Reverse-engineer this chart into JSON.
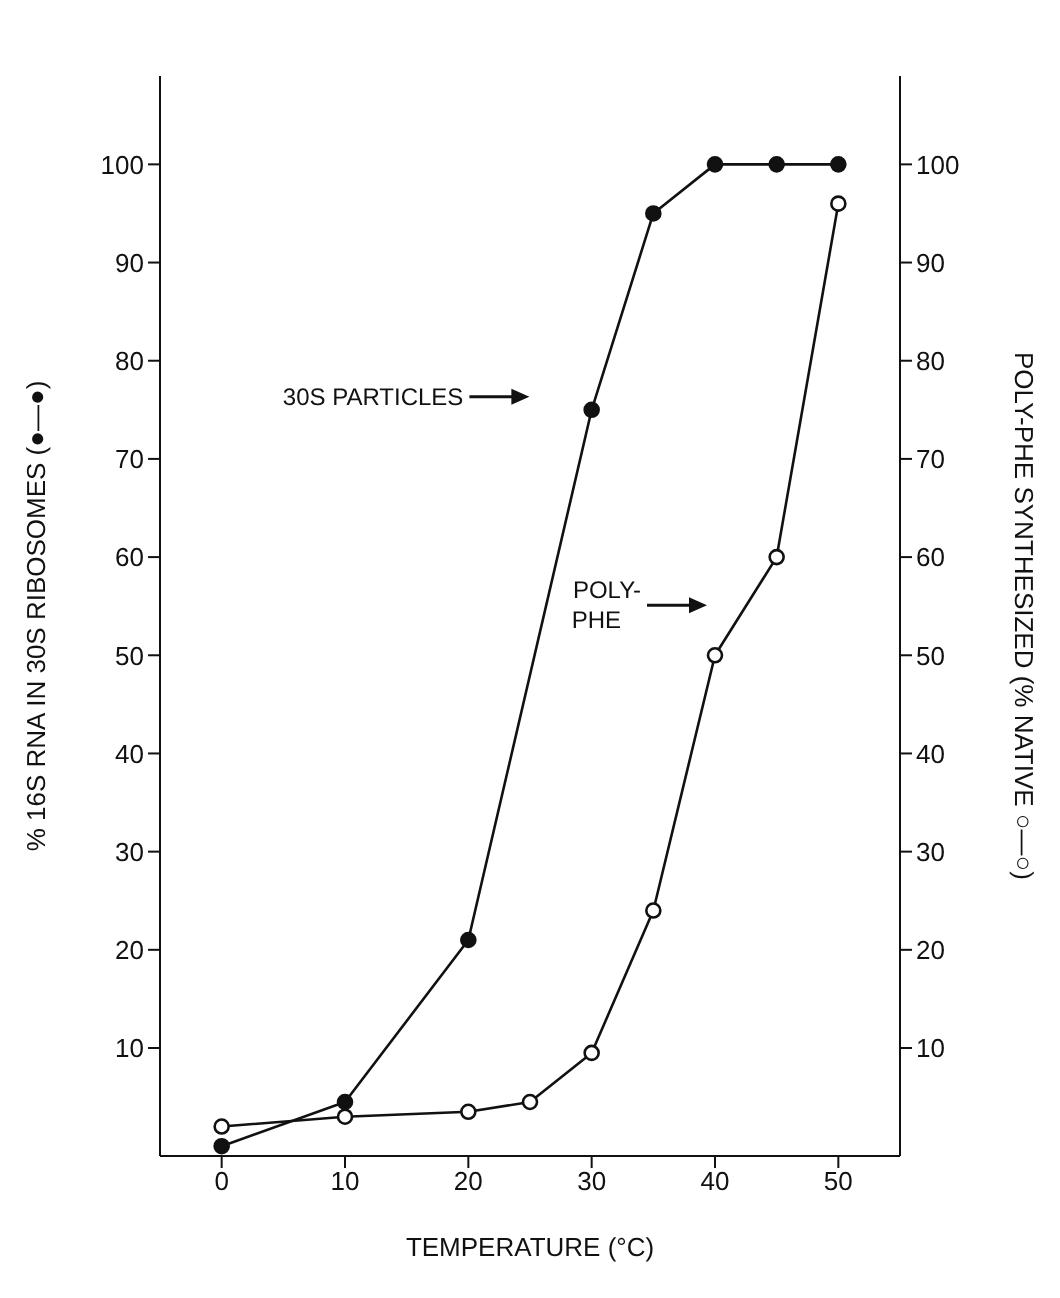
{
  "chart_data": {
    "type": "line",
    "xlabel": "TEMPERATURE (°C)",
    "ylabel": "% 16S RNA IN 30S RIBOSOMES (●—●)",
    "y2label": "POLY-PHE SYNTHESIZED (% NATIVE ○—○)",
    "x": [
      0,
      10,
      20,
      30,
      35,
      40,
      45,
      50
    ],
    "series": [
      {
        "color": "#111111",
        "values": [
          0,
          4.5,
          21,
          75,
          95,
          100,
          100,
          100
        ]
      },
      {
        "color": "#111111",
        "axis": "y2",
        "x": [
          0,
          10,
          20,
          25,
          30,
          35,
          40,
          45,
          50
        ],
        "values": [
          2,
          3,
          3.5,
          4.5,
          9.5,
          24,
          50,
          60,
          96
        ]
      }
    ],
    "xlim": [
      -5,
      55
    ],
    "xticks": [
      0,
      10,
      20,
      30,
      40,
      50
    ],
    "ylim": [
      -1,
      109
    ],
    "yticks": [
      10,
      20,
      30,
      40,
      50,
      60,
      70,
      80,
      90,
      100
    ],
    "y2lim": [
      -1,
      109
    ],
    "y2ticks": [
      10,
      20,
      30,
      40,
      50,
      60,
      70,
      80,
      90,
      100
    ],
    "annotations": [
      "30S PARTICLES",
      "POLY-PHE"
    ],
    "marker": "circle",
    "line_style": "solid",
    "grid": false,
    "legend": false
  }
}
